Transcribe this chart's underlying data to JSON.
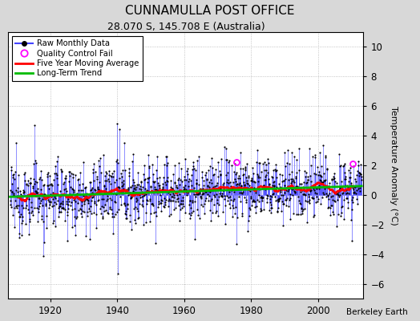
{
  "title": "CUNNAMULLA POST OFFICE",
  "subtitle": "28.070 S, 145.708 E (Australia)",
  "ylabel": "Temperature Anomaly (°C)",
  "attribution": "Berkeley Earth",
  "year_start": 1908,
  "year_end": 2013,
  "ylim": [
    -7,
    11
  ],
  "yticks": [
    -6,
    -4,
    -2,
    0,
    2,
    4,
    6,
    8,
    10
  ],
  "xticks": [
    1920,
    1940,
    1960,
    1980,
    2000
  ],
  "fig_bg_color": "#d8d8d8",
  "plot_bg_color": "#ffffff",
  "raw_line_color": "#4444ff",
  "raw_marker_color": "#000000",
  "qc_fail_color": "#ff00ff",
  "moving_avg_color": "#ff0000",
  "trend_color": "#00bb00",
  "seed": 12345
}
